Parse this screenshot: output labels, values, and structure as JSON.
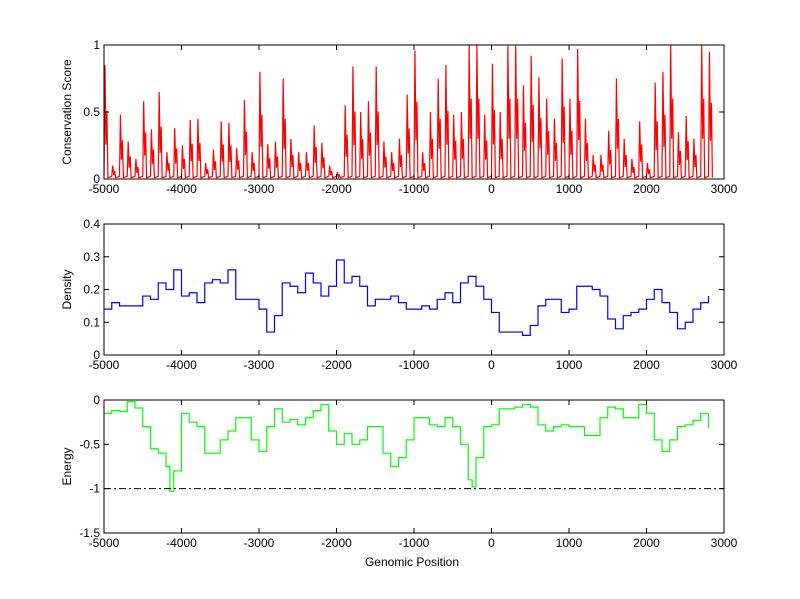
{
  "chart_data": [
    {
      "type": "line",
      "ylabel": "Conservation Score",
      "xlabel": "",
      "xlim": [
        -5000,
        3000
      ],
      "ylim": [
        0,
        1
      ],
      "xticks": [
        -5000,
        -4000,
        -3000,
        -2000,
        -1000,
        0,
        1000,
        2000,
        3000
      ],
      "yticks": [
        0,
        0.5,
        1
      ],
      "ytick_labels": [
        "0",
        "0.5",
        "1"
      ],
      "color": "#ff0000",
      "grid": false,
      "x": [
        -5000,
        -4900,
        -4800,
        -4700,
        -4600,
        -4500,
        -4400,
        -4300,
        -4200,
        -4100,
        -4000,
        -3900,
        -3800,
        -3700,
        -3600,
        -3500,
        -3400,
        -3300,
        -3200,
        -3100,
        -3000,
        -2900,
        -2800,
        -2700,
        -2600,
        -2500,
        -2400,
        -2300,
        -2200,
        -2100,
        -2000,
        -1900,
        -1800,
        -1700,
        -1600,
        -1500,
        -1400,
        -1300,
        -1200,
        -1100,
        -1000,
        -900,
        -800,
        -700,
        -600,
        -500,
        -400,
        -300,
        -200,
        -100,
        0,
        100,
        200,
        300,
        400,
        500,
        600,
        700,
        800,
        900,
        1000,
        1100,
        1200,
        1300,
        1400,
        1500,
        1600,
        1700,
        1800,
        1900,
        2000,
        2100,
        2200,
        2300,
        2400,
        2500,
        2600,
        2700,
        2800
      ],
      "values": [
        0.85,
        0.1,
        0.48,
        0.28,
        0.15,
        0.58,
        0.37,
        0.65,
        0.2,
        0.38,
        0.25,
        0.44,
        0.45,
        0.12,
        0.22,
        0.43,
        0.42,
        0.23,
        0.59,
        0.2,
        0.8,
        0.26,
        0.28,
        0.75,
        0.3,
        0.2,
        0.2,
        0.4,
        0.27,
        0.1,
        0.05,
        0.55,
        0.84,
        0.5,
        0.58,
        0.84,
        0.28,
        0.2,
        0.3,
        0.63,
        0.96,
        0.2,
        0.5,
        0.75,
        0.85,
        0.48,
        0.5,
        1.0,
        1.0,
        0.48,
        0.86,
        0.5,
        1.0,
        1.0,
        0.7,
        0.92,
        0.76,
        0.6,
        0.45,
        0.9,
        0.6,
        0.97,
        0.45,
        0.18,
        0.18,
        0.36,
        0.75,
        0.3,
        0.15,
        0.43,
        0.12,
        0.72,
        0.8,
        1.0,
        0.35,
        0.47,
        0.3,
        1.0,
        0.95
      ]
    },
    {
      "type": "line",
      "ylabel": "Density",
      "xlabel": "",
      "xlim": [
        -5000,
        3000
      ],
      "ylim": [
        0,
        0.4
      ],
      "xticks": [
        -5000,
        -4000,
        -3000,
        -2000,
        -1000,
        0,
        1000,
        2000,
        3000
      ],
      "yticks": [
        0,
        0.1,
        0.2,
        0.3,
        0.4
      ],
      "ytick_labels": [
        "0",
        "0.1",
        "0.2",
        "0.3",
        "0.4"
      ],
      "color": "#0000ff",
      "grid": false,
      "x": [
        -5000,
        -4900,
        -4800,
        -4700,
        -4600,
        -4500,
        -4400,
        -4300,
        -4200,
        -4100,
        -4000,
        -3900,
        -3800,
        -3700,
        -3600,
        -3500,
        -3400,
        -3300,
        -3200,
        -3100,
        -3000,
        -2900,
        -2800,
        -2700,
        -2600,
        -2500,
        -2400,
        -2300,
        -2200,
        -2100,
        -2000,
        -1900,
        -1800,
        -1700,
        -1600,
        -1500,
        -1400,
        -1300,
        -1200,
        -1100,
        -1000,
        -900,
        -800,
        -700,
        -600,
        -500,
        -400,
        -300,
        -200,
        -100,
        0,
        100,
        200,
        300,
        400,
        500,
        600,
        700,
        800,
        900,
        1000,
        1100,
        1200,
        1300,
        1400,
        1500,
        1600,
        1700,
        1800,
        1900,
        2000,
        2100,
        2200,
        2300,
        2400,
        2500,
        2600,
        2700,
        2800
      ],
      "values": [
        0.14,
        0.16,
        0.15,
        0.15,
        0.15,
        0.18,
        0.17,
        0.22,
        0.2,
        0.26,
        0.18,
        0.19,
        0.16,
        0.22,
        0.23,
        0.22,
        0.26,
        0.17,
        0.17,
        0.17,
        0.14,
        0.07,
        0.12,
        0.22,
        0.21,
        0.19,
        0.25,
        0.22,
        0.18,
        0.21,
        0.29,
        0.22,
        0.24,
        0.21,
        0.15,
        0.17,
        0.17,
        0.18,
        0.16,
        0.14,
        0.14,
        0.15,
        0.14,
        0.17,
        0.19,
        0.16,
        0.22,
        0.24,
        0.21,
        0.17,
        0.13,
        0.07,
        0.07,
        0.07,
        0.06,
        0.09,
        0.15,
        0.17,
        0.17,
        0.13,
        0.14,
        0.21,
        0.21,
        0.2,
        0.18,
        0.11,
        0.08,
        0.12,
        0.13,
        0.14,
        0.17,
        0.2,
        0.16,
        0.13,
        0.08,
        0.1,
        0.14,
        0.16,
        0.18
      ]
    },
    {
      "type": "line",
      "ylabel": "Energy",
      "xlabel": "Genomic Position",
      "xlim": [
        -5000,
        3000
      ],
      "ylim": [
        -1.5,
        0
      ],
      "xticks": [
        -5000,
        -4000,
        -3000,
        -2000,
        -1000,
        0,
        1000,
        2000,
        3000
      ],
      "yticks": [
        -1.5,
        -1,
        -0.5,
        0
      ],
      "ytick_labels": [
        "-1.5",
        "-1",
        "-0.5",
        "0"
      ],
      "color": "#00ff00",
      "threshold": {
        "y": -1,
        "color": "#000000",
        "style": "dash-dot"
      },
      "grid": false,
      "x": [
        -5000,
        -4900,
        -4800,
        -4700,
        -4600,
        -4500,
        -4400,
        -4300,
        -4200,
        -4150,
        -4100,
        -4000,
        -3900,
        -3800,
        -3700,
        -3600,
        -3500,
        -3400,
        -3300,
        -3200,
        -3100,
        -3000,
        -2900,
        -2800,
        -2700,
        -2600,
        -2500,
        -2400,
        -2300,
        -2200,
        -2100,
        -2000,
        -1900,
        -1800,
        -1700,
        -1600,
        -1500,
        -1400,
        -1300,
        -1200,
        -1100,
        -1000,
        -900,
        -800,
        -700,
        -600,
        -500,
        -400,
        -300,
        -250,
        -200,
        -100,
        0,
        100,
        200,
        300,
        400,
        500,
        600,
        700,
        800,
        900,
        1000,
        1100,
        1200,
        1300,
        1400,
        1500,
        1600,
        1700,
        1800,
        1900,
        2000,
        2100,
        2200,
        2300,
        2400,
        2500,
        2600,
        2700,
        2800
      ],
      "values": [
        -0.15,
        -0.12,
        -0.13,
        -0.02,
        -0.09,
        -0.3,
        -0.55,
        -0.6,
        -0.75,
        -1.03,
        -0.8,
        -0.15,
        -0.25,
        -0.3,
        -0.6,
        -0.6,
        -0.45,
        -0.35,
        -0.2,
        -0.2,
        -0.45,
        -0.58,
        -0.3,
        -0.1,
        -0.25,
        -0.22,
        -0.28,
        -0.2,
        -0.12,
        -0.05,
        -0.35,
        -0.5,
        -0.38,
        -0.5,
        -0.45,
        -0.3,
        -0.3,
        -0.6,
        -0.75,
        -0.65,
        -0.45,
        -0.2,
        -0.2,
        -0.28,
        -0.3,
        -0.2,
        -0.3,
        -0.5,
        -0.9,
        -0.98,
        -0.65,
        -0.3,
        -0.28,
        -0.1,
        -0.1,
        -0.08,
        -0.05,
        -0.08,
        -0.28,
        -0.35,
        -0.3,
        -0.28,
        -0.3,
        -0.3,
        -0.4,
        -0.4,
        -0.2,
        -0.08,
        -0.1,
        -0.2,
        -0.2,
        -0.05,
        -0.15,
        -0.45,
        -0.58,
        -0.45,
        -0.3,
        -0.28,
        -0.23,
        -0.15,
        -0.32
      ]
    }
  ]
}
